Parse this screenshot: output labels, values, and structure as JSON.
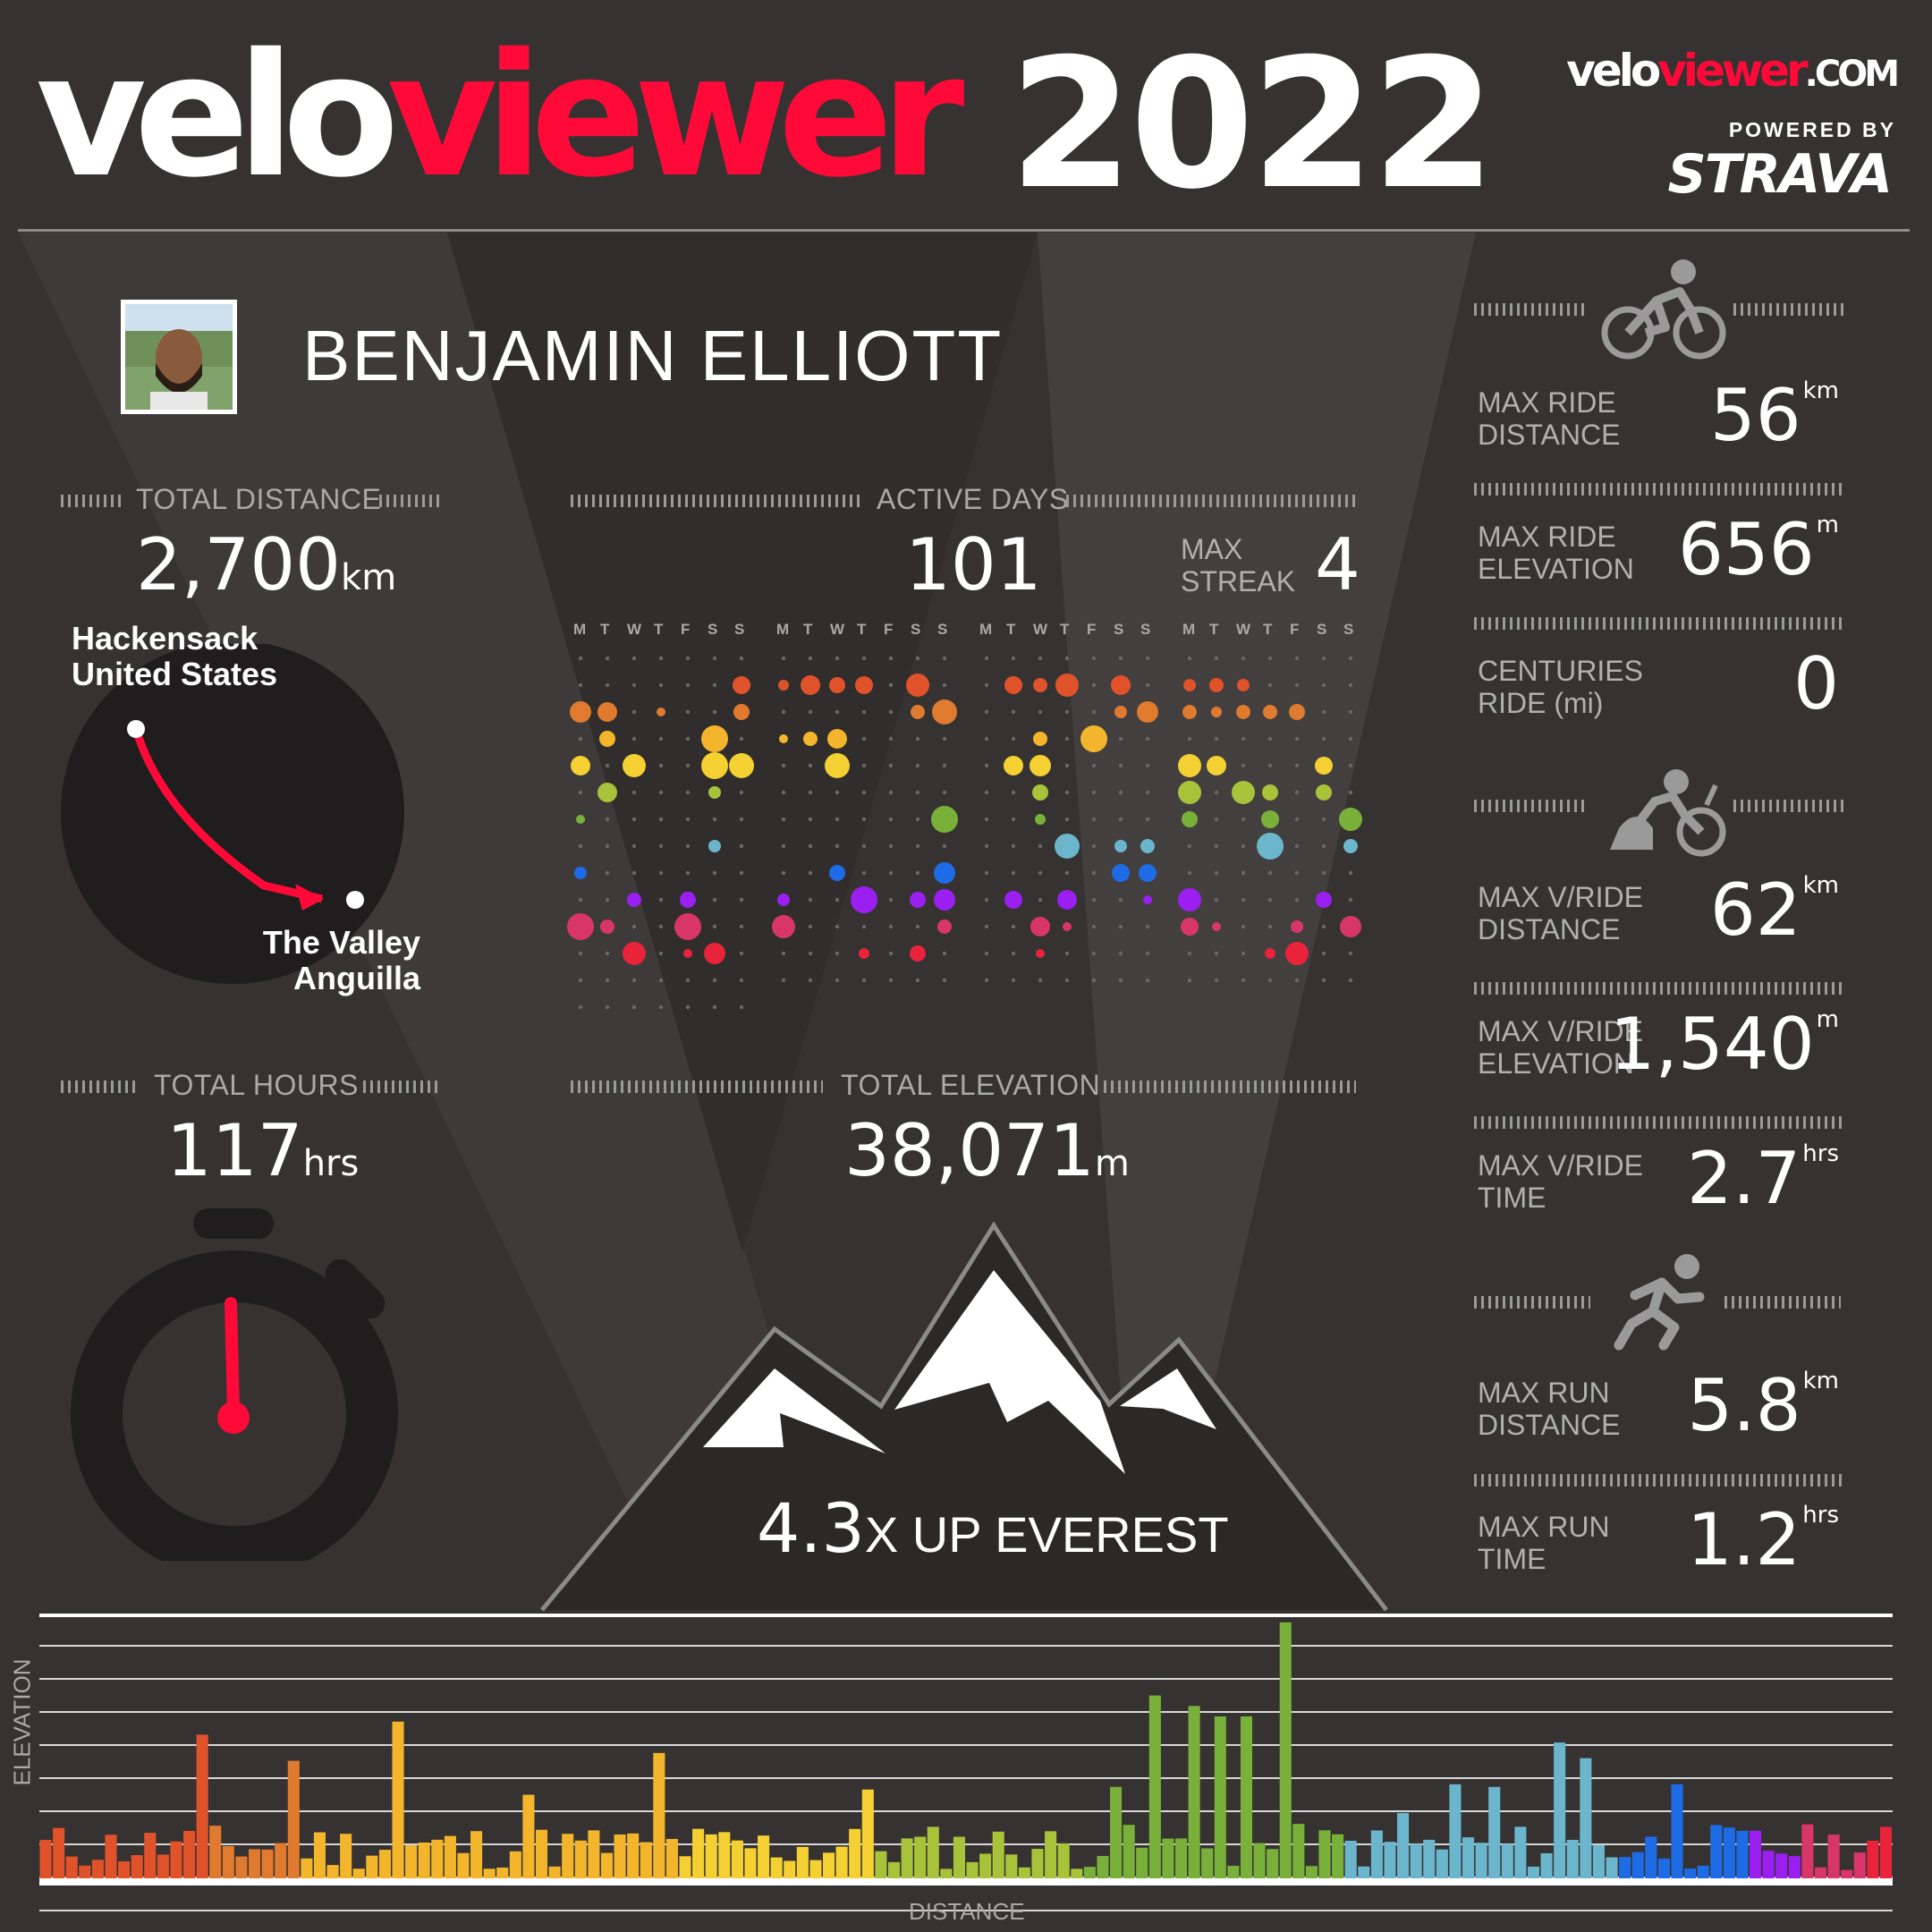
{
  "header": {
    "logo_velo": "velo",
    "logo_viewer": "viewer",
    "year": "2022",
    "site_velo": "velo",
    "site_viewer": "viewer",
    "site_com": ".com",
    "powered_by": "POWERED BY",
    "strava": "STRAVA"
  },
  "athlete": {
    "name": "BENJAMIN ELLIOTT"
  },
  "distance": {
    "label": "TOTAL DISTANCE",
    "value": "2,700",
    "unit": "km",
    "from_city": "Hackensack",
    "from_country": "United States",
    "to_city": "The Valley",
    "to_country": "Anguilla"
  },
  "active_days": {
    "label": "ACTIVE DAYS",
    "value": "101",
    "max_streak_label_1": "MAX",
    "max_streak_label_2": "STREAK",
    "max_streak_value": "4",
    "weekday_letters": [
      "M",
      "T",
      "W",
      "T",
      "F",
      "S",
      "S"
    ]
  },
  "hours": {
    "label": "TOTAL HOURS",
    "value": "117",
    "unit": "hrs"
  },
  "elevation": {
    "label": "TOTAL ELEVATION",
    "value": "38,071",
    "unit": "m",
    "everest_value": "4.3",
    "everest_text": "X UP EVEREST"
  },
  "stats": [
    {
      "label": "MAX RIDE\nDISTANCE",
      "value": "56",
      "unit": "km"
    },
    {
      "label": "MAX RIDE\nELEVATION",
      "value": "656",
      "unit": "m"
    },
    {
      "label": "CENTURIES\nRIDE (mi)",
      "value": "0",
      "unit": ""
    },
    {
      "label": "MAX V/RIDE\nDISTANCE",
      "value": "62",
      "unit": "km"
    },
    {
      "label": "MAX V/RIDE\nELEVATION",
      "value": "1,540",
      "unit": "m"
    },
    {
      "label": "MAX V/RIDE\nTIME",
      "value": "2.7",
      "unit": "hrs"
    },
    {
      "label": "MAX RUN\nDISTANCE",
      "value": "5.8",
      "unit": "km"
    },
    {
      "label": "MAX RUN\nTIME",
      "value": "1.2",
      "unit": "hrs"
    }
  ],
  "icons": [
    "bike-icon",
    "virtual-ride-icon",
    "runner-icon",
    "stopwatch-icon",
    "mountain-icon",
    "route-globe-icon"
  ],
  "chart_labels": {
    "x": "DISTANCE",
    "y": "ELEVATION"
  },
  "colors": {
    "accent": "#ff0a38",
    "background": "#353231"
  }
}
